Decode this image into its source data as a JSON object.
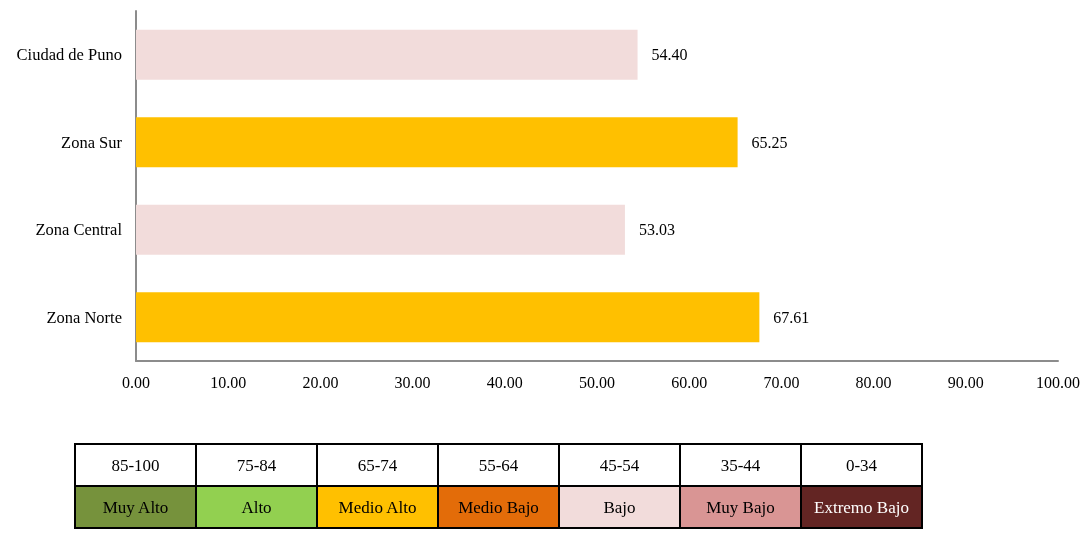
{
  "chart_data": [
    {
      "type": "bar",
      "orientation": "horizontal",
      "categories": [
        "Ciudad de Puno",
        "Zona Sur",
        "Zona Central",
        "Zona Norte"
      ],
      "values": [
        54.4,
        65.25,
        53.03,
        67.61
      ],
      "value_labels": [
        "54.40",
        "65.25",
        "53.03",
        "67.61"
      ],
      "colors": [
        "#f2dcdb",
        "#ffc000",
        "#f2dcdb",
        "#ffc000"
      ],
      "xlim": [
        0,
        100
      ],
      "xticks": [
        {
          "value": 0,
          "label": "0.00"
        },
        {
          "value": 10,
          "label": "10.00"
        },
        {
          "value": 20,
          "label": "20.00"
        },
        {
          "value": 30,
          "label": "30.00"
        },
        {
          "value": 40,
          "label": "40.00"
        },
        {
          "value": 50,
          "label": "50.00"
        },
        {
          "value": 60,
          "label": "60.00"
        },
        {
          "value": 70,
          "label": "70.00"
        },
        {
          "value": 80,
          "label": "80.00"
        },
        {
          "value": 90,
          "label": "90.00"
        },
        {
          "value": 100,
          "label": "100.00"
        }
      ]
    },
    {
      "type": "other",
      "categories": [
        "Muy Alto",
        "Alto",
        "Medio Alto",
        "Medio Bajo",
        "Bajo",
        "Muy Bajo",
        "Extremo Bajo"
      ],
      "annotations": [
        "85-100",
        "75-84",
        "65-74",
        "55-64",
        "45-54",
        "35-44",
        "0-34"
      ],
      "colors": [
        "#76923c",
        "#92d050",
        "#ffc000",
        "#e36c09",
        "#f2dcdb",
        "#d99594",
        "#632523"
      ]
    }
  ]
}
